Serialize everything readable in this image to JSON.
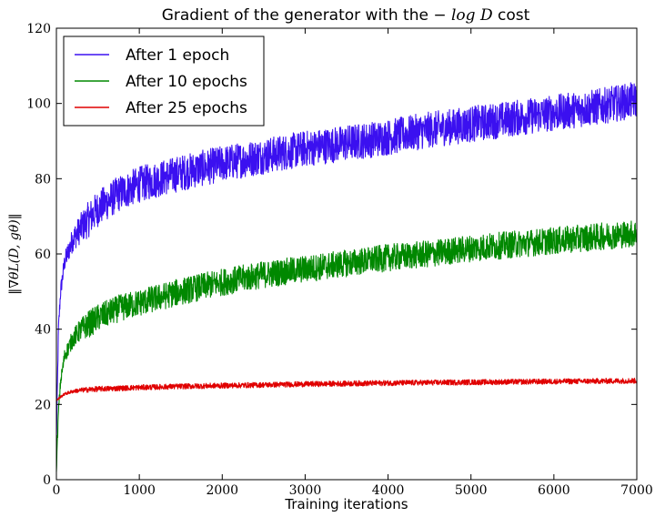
{
  "chart_data": {
    "type": "line",
    "title_prefix": "Gradient of the generator with the ",
    "title_math": "− log D",
    "title_suffix": " cost",
    "xlabel": "Training iterations",
    "ylabel": "‖∇θL(D, gθ)‖",
    "xlim": [
      0,
      7000
    ],
    "ylim": [
      0,
      120
    ],
    "xticks": [
      0,
      1000,
      2000,
      3000,
      4000,
      5000,
      6000,
      7000
    ],
    "yticks": [
      0,
      20,
      40,
      60,
      80,
      100,
      120
    ],
    "grid": false,
    "legend_position": "top-left",
    "series": [
      {
        "name": "After 1 epoch",
        "color": "#3b10f0",
        "noise": 4,
        "x": [
          0,
          25,
          50,
          100,
          200,
          300,
          500,
          750,
          1000,
          1500,
          2000,
          2500,
          3000,
          3500,
          4000,
          4500,
          5000,
          5500,
          6000,
          6500,
          7000
        ],
        "y": [
          10,
          40,
          50,
          58,
          64,
          67,
          72,
          76,
          78.5,
          81.5,
          84,
          86,
          88,
          89.5,
          91,
          93,
          94.5,
          96,
          97.5,
          99,
          101
        ]
      },
      {
        "name": "After 10 epochs",
        "color": "#008800",
        "noise": 3,
        "x": [
          0,
          25,
          50,
          100,
          200,
          300,
          500,
          750,
          1000,
          1500,
          2000,
          2500,
          3000,
          3500,
          4000,
          4500,
          5000,
          5500,
          6000,
          6500,
          7000
        ],
        "y": [
          3,
          18,
          26,
          33,
          37.5,
          40,
          43,
          45.5,
          47,
          50,
          52.5,
          54.5,
          56,
          57.5,
          59,
          60,
          61.5,
          62.5,
          63.5,
          64.5,
          65.5
        ]
      },
      {
        "name": "After 25 epochs",
        "color": "#e00000",
        "noise": 0.6,
        "x": [
          0,
          50,
          100,
          200,
          300,
          500,
          750,
          1000,
          1500,
          2000,
          3000,
          4000,
          5000,
          6000,
          7000
        ],
        "y": [
          21,
          22,
          22.8,
          23.5,
          23.8,
          24.1,
          24.3,
          24.5,
          24.8,
          25,
          25.4,
          25.7,
          25.9,
          26.1,
          26.3
        ]
      }
    ]
  }
}
